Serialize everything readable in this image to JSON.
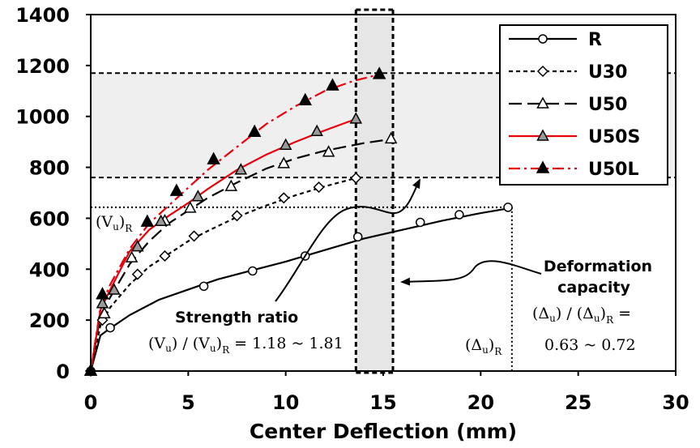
{
  "chart_data": {
    "type": "line",
    "xlabel": "Center Deflection (mm)",
    "ylabel": "",
    "xlim": [
      0,
      30
    ],
    "ylim": [
      0,
      1400
    ],
    "x_ticks": [
      "0",
      "5",
      "10",
      "15",
      "20",
      "25",
      "30"
    ],
    "y_ticks": [
      "0",
      "200",
      "400",
      "600",
      "800",
      "1000",
      "1200",
      "1400"
    ],
    "grid": false,
    "legend_position": "top-right",
    "series": [
      {
        "name": "R",
        "color": "#000000",
        "dash": "solid",
        "marker": "open-circle",
        "x": [
          0,
          0.5,
          1.0,
          2.0,
          3.5,
          5.0,
          6.5,
          8.0,
          10.0,
          12.0,
          14.0,
          16.0,
          18.0,
          20.0,
          21.5
        ],
        "y": [
          0,
          140,
          168,
          220,
          280,
          320,
          360,
          390,
          430,
          475,
          520,
          555,
          590,
          620,
          640
        ],
        "markers_x": [
          0,
          1.0,
          5.8,
          8.3,
          11.0,
          13.7,
          16.9,
          18.9,
          21.4
        ],
        "markers_y": [
          0,
          170,
          333,
          393,
          452,
          527,
          584,
          614,
          643
        ]
      },
      {
        "name": "U30",
        "color": "#000000",
        "dash": "short-dash",
        "marker": "open-diamond",
        "x": [
          0,
          0.5,
          1.0,
          2.0,
          3.0,
          4.0,
          5.0,
          6.0,
          7.5,
          9.0,
          10.5,
          12.0,
          13.6
        ],
        "y": [
          0,
          180,
          250,
          340,
          410,
          460,
          510,
          550,
          605,
          650,
          690,
          725,
          758
        ],
        "markers_x": [
          0,
          0.6,
          2.4,
          3.8,
          5.3,
          7.5,
          9.9,
          11.7,
          13.6
        ],
        "markers_y": [
          0,
          200,
          380,
          452,
          530,
          610,
          680,
          722,
          758
        ]
      },
      {
        "name": "U50",
        "color": "#000000",
        "dash": "long-dash",
        "marker": "open-triangle",
        "x": [
          0,
          0.5,
          1.0,
          2.0,
          3.0,
          4.0,
          5.0,
          6.0,
          7.5,
          9.0,
          10.5,
          12.0,
          14.0,
          15.5
        ],
        "y": [
          0,
          220,
          290,
          420,
          510,
          580,
          630,
          680,
          740,
          795,
          835,
          865,
          895,
          912
        ],
        "markers_x": [
          0,
          0.7,
          2.1,
          3.8,
          5.1,
          7.2,
          9.9,
          12.2,
          15.4
        ],
        "markers_y": [
          0,
          225,
          445,
          590,
          640,
          725,
          815,
          860,
          912
        ]
      },
      {
        "name": "U50S",
        "color": "#e8000b",
        "dash": "solid",
        "marker": "gray-triangle",
        "x": [
          0,
          0.5,
          1.0,
          2.0,
          3.0,
          4.0,
          5.0,
          6.0,
          7.5,
          9.0,
          10.5,
          12.0,
          13.6
        ],
        "y": [
          0,
          240,
          320,
          470,
          555,
          610,
          660,
          715,
          790,
          850,
          900,
          945,
          990
        ],
        "markers_x": [
          0,
          0.6,
          1.2,
          2.4,
          3.6,
          5.5,
          7.7,
          10.0,
          11.6,
          13.6
        ],
        "markers_y": [
          0,
          265,
          318,
          488,
          588,
          685,
          790,
          887,
          941,
          990
        ]
      },
      {
        "name": "U50L",
        "color": "#e8000b",
        "dash": "dash-dot",
        "marker": "filled-triangle",
        "x": [
          0,
          0.5,
          1.0,
          2.0,
          3.0,
          4.0,
          5.0,
          6.0,
          7.5,
          9.0,
          10.5,
          12.0,
          13.5,
          14.8
        ],
        "y": [
          0,
          250,
          340,
          480,
          580,
          650,
          720,
          790,
          880,
          970,
          1040,
          1100,
          1140,
          1165
        ],
        "markers_x": [
          0,
          0.6,
          2.9,
          4.4,
          6.3,
          8.4,
          11.0,
          12.4,
          14.8
        ],
        "markers_y": [
          0,
          300,
          585,
          706,
          830,
          938,
          1062,
          1120,
          1165
        ]
      }
    ],
    "reference_lines": {
      "h_dashed": [
        1170,
        760
      ],
      "h_dotted": 643,
      "v_dashed": [
        13.6,
        15.5
      ],
      "v_dotted": 21.6
    },
    "shaded_band_color": "#efefef",
    "annotations": {
      "vu_r": "(V",
      "vu_r_sub_u": "u",
      "vu_r_close": ")",
      "vu_r_sub_r": "R",
      "strength_title": "Strength ratio",
      "strength_formula_a": "(V",
      "strength_formula_u1": "u",
      "strength_formula_b": ") / (V",
      "strength_formula_u2": "u",
      "strength_formula_c": ")",
      "strength_formula_r": "R",
      "strength_formula_d": " = 1.18 ~ 1.81",
      "delta_r": "(Δ",
      "delta_r_sub_u": "u",
      "delta_r_close": ")",
      "delta_r_sub_r": "R",
      "deform_title_1": "Deformation",
      "deform_title_2": "capacity",
      "deform_formula_a": "(Δ",
      "deform_formula_u1": "u",
      "deform_formula_b": ") / (Δ",
      "deform_formula_u2": "u",
      "deform_formula_c": ")",
      "deform_formula_r": "R",
      "deform_formula_d": " =",
      "deform_formula_2": "0.63 ~ 0.72"
    }
  }
}
